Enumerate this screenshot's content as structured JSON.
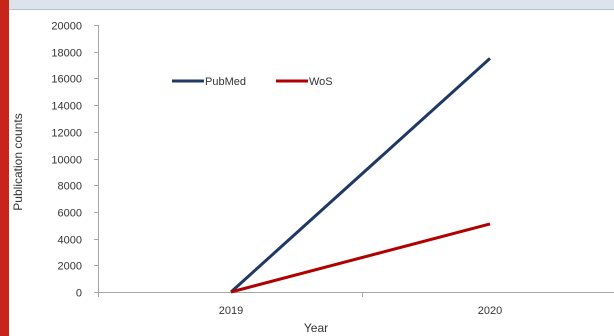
{
  "colors": {
    "left_bar": "#c8251a",
    "top_band": "#dde3ec",
    "top_rule": "#b7c2d1",
    "axis": "#a6a6a6",
    "pubmed": "#1f3864",
    "wos": "#b00000"
  },
  "chart_data": {
    "type": "line",
    "x": [
      "2019",
      "2020"
    ],
    "series": [
      {
        "name": "PubMed",
        "values": [
          0,
          17500
        ]
      },
      {
        "name": "WoS",
        "values": [
          0,
          5100
        ]
      }
    ],
    "xlabel": "Year",
    "ylabel": "Publication counts",
    "ylim": [
      0,
      20000
    ],
    "yticks": [
      0,
      2000,
      4000,
      6000,
      8000,
      10000,
      12000,
      14000,
      16000,
      18000,
      20000
    ],
    "legend_position": "top-left-inside",
    "grid": false
  }
}
